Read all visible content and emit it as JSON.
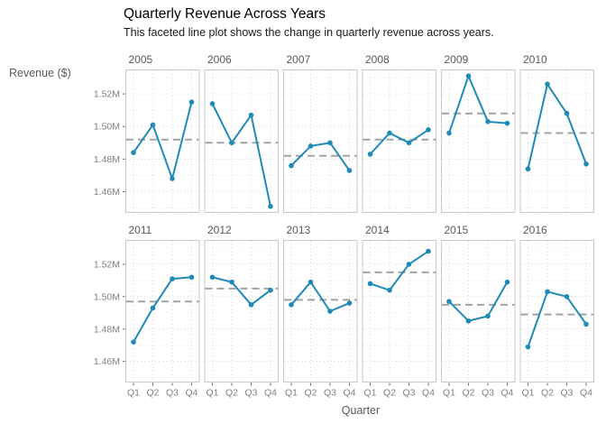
{
  "title": "Quarterly Revenue Across Years",
  "subtitle": "This faceted line plot shows the change in quarterly revenue across years.",
  "x_axis_title": "Quarter",
  "y_axis_title": "Revenue ($)",
  "chart_data": {
    "type": "line",
    "faceted": true,
    "facet_variable": "year",
    "facet_layout": {
      "rows": 2,
      "cols": 6
    },
    "categories": [
      "Q1",
      "Q2",
      "Q3",
      "Q4"
    ],
    "unit": "millions of dollars",
    "ylim": [
      1.447,
      1.535
    ],
    "y_major_ticks": [
      1.46,
      1.48,
      1.5,
      1.52
    ],
    "y_tick_labels": [
      "1.46M",
      "1.48M",
      "1.50M",
      "1.52M"
    ],
    "y_minor_ticks": [
      1.45,
      1.47,
      1.49,
      1.51,
      1.53
    ],
    "grid": "dotted",
    "legend": "none",
    "mean_line_style": "dashed",
    "series": [
      {
        "year": "2005",
        "values": [
          1.484,
          1.501,
          1.468,
          1.515
        ],
        "mean": 1.492
      },
      {
        "year": "2006",
        "values": [
          1.514,
          1.49,
          1.507,
          1.451
        ],
        "mean": 1.49
      },
      {
        "year": "2007",
        "values": [
          1.476,
          1.488,
          1.49,
          1.473
        ],
        "mean": 1.482
      },
      {
        "year": "2008",
        "values": [
          1.483,
          1.496,
          1.49,
          1.498
        ],
        "mean": 1.492
      },
      {
        "year": "2009",
        "values": [
          1.496,
          1.531,
          1.503,
          1.502
        ],
        "mean": 1.508
      },
      {
        "year": "2010",
        "values": [
          1.474,
          1.526,
          1.508,
          1.477
        ],
        "mean": 1.496
      },
      {
        "year": "2011",
        "values": [
          1.472,
          1.493,
          1.511,
          1.512
        ],
        "mean": 1.497
      },
      {
        "year": "2012",
        "values": [
          1.512,
          1.509,
          1.495,
          1.504
        ],
        "mean": 1.505
      },
      {
        "year": "2013",
        "values": [
          1.495,
          1.509,
          1.491,
          1.496
        ],
        "mean": 1.498
      },
      {
        "year": "2014",
        "values": [
          1.508,
          1.504,
          1.52,
          1.528
        ],
        "mean": 1.515
      },
      {
        "year": "2015",
        "values": [
          1.497,
          1.485,
          1.488,
          1.509
        ],
        "mean": 1.495
      },
      {
        "year": "2016",
        "values": [
          1.469,
          1.503,
          1.5,
          1.483
        ],
        "mean": 1.489
      }
    ],
    "colors": {
      "line": "#1f8ab5",
      "point": "#1f8ab5",
      "mean_line": "#a3a3a3",
      "grid_major": "#d6d6d6",
      "grid_minor": "#e5e5e5",
      "panel_border": "#c8c8c8",
      "facet_label": "#595959",
      "tick_label": "#808080",
      "tick_mark": "#666666",
      "background": "#ffffff"
    }
  }
}
